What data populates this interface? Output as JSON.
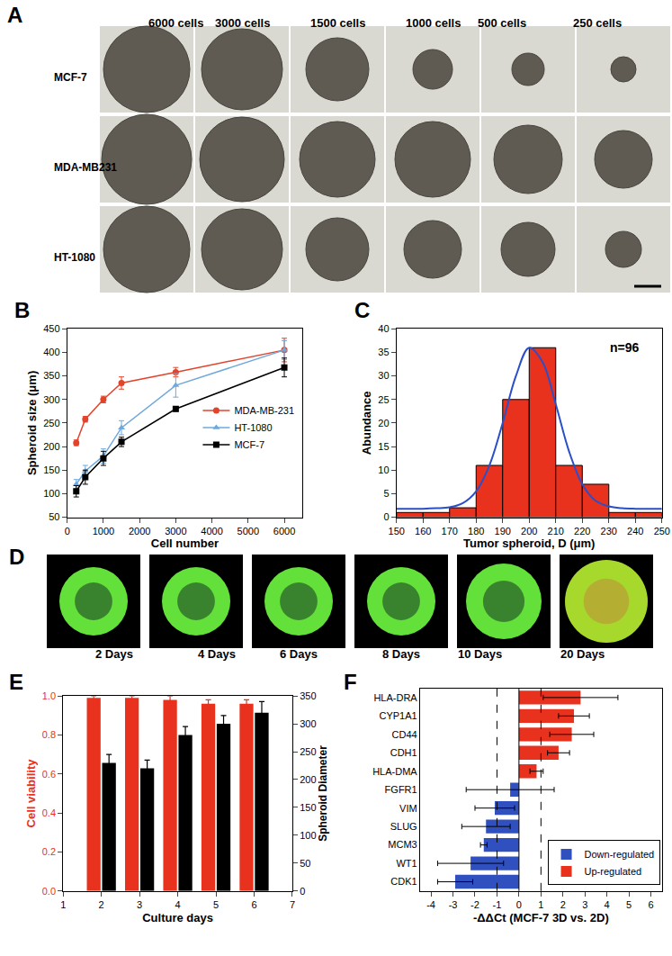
{
  "chart_data": [
    {
      "type": "image_grid",
      "title": "A",
      "columns": [
        "6000 cells",
        "3000 cells",
        "1500 cells",
        "1000 cells",
        "500 cells",
        "250 cells"
      ],
      "rows": [
        "MCF-7",
        "MDA-MB231",
        "HT-1080"
      ]
    },
    {
      "type": "line",
      "title": "B",
      "xlabel": "Cell number",
      "ylabel": "Spheroid size (μm)",
      "x": [
        250,
        500,
        1000,
        1500,
        3000,
        6000
      ],
      "series": [
        {
          "name": "MDA-MB-231",
          "color": "#e2432b",
          "marker": "circle",
          "values": [
            208,
            258,
            300,
            335,
            358,
            405
          ],
          "errors": [
            6,
            6,
            7,
            13,
            10,
            25
          ]
        },
        {
          "name": "HT-1080",
          "color": "#6fa8dc",
          "marker": "triangle-up",
          "values": [
            120,
            148,
            180,
            240,
            330,
            405
          ],
          "errors": [
            10,
            12,
            15,
            15,
            25,
            20
          ]
        },
        {
          "name": "MCF-7",
          "color": "#000000",
          "marker": "square",
          "values": [
            105,
            135,
            175,
            210,
            280,
            368
          ],
          "errors": [
            12,
            15,
            15,
            10,
            5,
            20
          ]
        }
      ],
      "xlim": [
        0,
        6500
      ],
      "xticks": [
        0,
        1000,
        2000,
        3000,
        4000,
        5000,
        6000
      ],
      "ylim": [
        50,
        450
      ],
      "yticks": [
        50,
        100,
        150,
        200,
        250,
        300,
        350,
        400,
        450
      ],
      "legend": "right"
    },
    {
      "type": "histogram",
      "title": "C",
      "xlabel": "Tumor spheroid, D (μm)",
      "ylabel": "Abundance",
      "annotation": "n=96",
      "bins": [
        150,
        160,
        170,
        180,
        190,
        200,
        210,
        220,
        230,
        240,
        250
      ],
      "counts": [
        1,
        1,
        2,
        11,
        25,
        36,
        11,
        7,
        1,
        1
      ],
      "color": "#e8321e",
      "fit": {
        "color": "#2a4fc8",
        "x": [
          150,
          155,
          160,
          165,
          170,
          175,
          180,
          185,
          190,
          195,
          200,
          205,
          210,
          215,
          220,
          225,
          230,
          235,
          240,
          245,
          250
        ],
        "values": [
          1.8,
          1.8,
          1.8,
          1.9,
          2.1,
          3,
          5.5,
          11,
          20,
          30,
          36,
          33,
          24,
          14,
          7,
          3.5,
          2.3,
          1.9,
          1.8,
          1.8,
          1.8
        ]
      },
      "xlim": [
        150,
        250
      ],
      "xticks": [
        150,
        160,
        170,
        180,
        190,
        200,
        210,
        220,
        230,
        240,
        250
      ],
      "ylim": [
        0,
        40
      ],
      "yticks": [
        0,
        5,
        10,
        15,
        20,
        25,
        30,
        35,
        40
      ]
    },
    {
      "type": "image_row",
      "title": "D",
      "labels": [
        "2 Days",
        "4 Days",
        "6 Days",
        "8 Days",
        "10 Days",
        "20 Days"
      ]
    },
    {
      "type": "bar",
      "title": "E",
      "xlabel": "Culture days",
      "x": [
        2,
        3,
        4,
        5,
        6
      ],
      "series": [
        {
          "name": "Cell viability",
          "color": "#e8321e",
          "values": [
            0.99,
            0.99,
            0.98,
            0.96,
            0.96
          ],
          "errors": [
            0.01,
            0.01,
            0.02,
            0.02,
            0.02
          ]
        },
        {
          "name": "Spheroid Diameter",
          "color": "#000000",
          "axis": "y2",
          "values": [
            230,
            220,
            280,
            300,
            320
          ],
          "errors": [
            15,
            15,
            15,
            15,
            20
          ]
        }
      ],
      "xlim": [
        1,
        7
      ],
      "xticks": [
        1,
        2,
        3,
        4,
        5,
        6,
        7
      ],
      "ylim": [
        0,
        1
      ],
      "yticks": [
        {
          "value": 0,
          "label": "0.0"
        },
        0.2,
        0.4,
        0.6,
        0.8,
        {
          "value": 1,
          "label": "1.0"
        }
      ],
      "y2lim": [
        0,
        350
      ],
      "y2ticks": [
        0,
        50,
        100,
        150,
        200,
        250,
        300,
        350
      ]
    },
    {
      "type": "bar",
      "title": "F",
      "orientation": "horizontal",
      "xlabel": "-ΔΔCt (MCF-7 3D vs. 2D)",
      "categories": [
        "HLA-DRA",
        "CYP1A1",
        "CD44",
        "CDH1",
        "HLA-DMA",
        "FGFR1",
        "VIM",
        "SLUG",
        "MCM3",
        "WT1",
        "CDK1"
      ],
      "series": [
        {
          "name": "Down-regulated",
          "color": "#3050c0",
          "values": [
            null,
            null,
            null,
            null,
            null,
            -0.4,
            -1.1,
            -1.5,
            -1.6,
            -2.2,
            -2.9
          ],
          "errors": [
            null,
            null,
            null,
            null,
            null,
            2.0,
            0.9,
            1.1,
            0.15,
            1.5,
            0.8
          ]
        },
        {
          "name": "Up-regulated",
          "color": "#e8321e",
          "values": [
            2.8,
            2.5,
            2.4,
            1.8,
            0.8,
            null,
            null,
            null,
            null,
            null,
            null
          ],
          "errors": [
            1.7,
            0.7,
            1.0,
            0.5,
            0.3,
            null,
            null,
            null,
            null,
            null,
            null
          ]
        }
      ],
      "thresholds": [
        -1,
        1
      ],
      "xlim": [
        -4.5,
        6.5
      ],
      "xticks": [
        -4,
        -3,
        -2,
        -1,
        0,
        1,
        2,
        3,
        4,
        5,
        6
      ],
      "legend": "lower right"
    }
  ]
}
